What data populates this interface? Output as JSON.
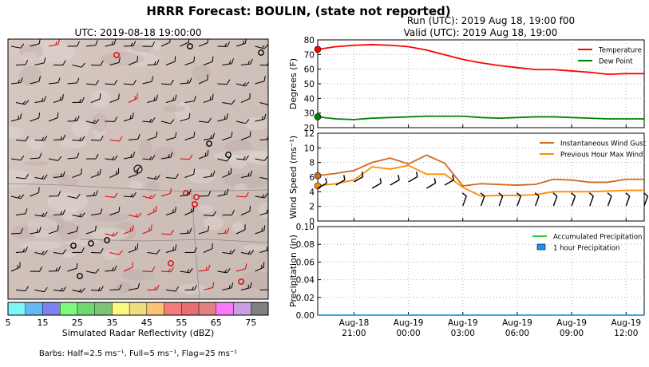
{
  "figure": {
    "suptitle": "HRRR Forecast: BOULIN, (state not reported)",
    "barbs_note": "Barbs: Half=2.5 ms⁻¹, Full=5 ms⁻¹, Flag=25 ms⁻¹"
  },
  "map_panel": {
    "title": "UTC: 2019-08-18 19:00:00",
    "colorbar_label": "Simulated Radar Reflectivity (dBZ)",
    "colorbar_ticks": [
      "5",
      "15",
      "25",
      "35",
      "45",
      "55",
      "65",
      "75"
    ],
    "colorbar_colors": [
      "#7ff5f5",
      "#65b8f5",
      "#8080f0",
      "#7dfa7d",
      "#6ed86e",
      "#7cc47c",
      "#fafa82",
      "#f0dd82",
      "#f8c476",
      "#f67a7a",
      "#e87070",
      "#e08080",
      "#f87af8",
      "#c8a0e0",
      "#808080"
    ]
  },
  "header_right": {
    "run": "Run (UTC): 2019 Aug 18, 19:00 f00",
    "valid": "Valid (UTC): 2019 Aug 18, 19:00"
  },
  "chart_data": [
    {
      "type": "line",
      "x": [
        "2019-08-18 19:00",
        "2019-08-18 20:00",
        "2019-08-18 21:00",
        "2019-08-18 22:00",
        "2019-08-18 23:00",
        "2019-08-19 00:00",
        "2019-08-19 01:00",
        "2019-08-19 02:00",
        "2019-08-19 03:00",
        "2019-08-19 04:00",
        "2019-08-19 05:00",
        "2019-08-19 06:00",
        "2019-08-19 07:00",
        "2019-08-19 08:00",
        "2019-08-19 09:00",
        "2019-08-19 10:00",
        "2019-08-19 11:00",
        "2019-08-19 12:00",
        "2019-08-19 13:00"
      ],
      "ylabel": "Degrees (F)",
      "ylim": [
        20,
        85
      ],
      "yticks": [
        "20",
        "30",
        "40",
        "50",
        "60",
        "70",
        "80"
      ],
      "grid": true,
      "legend": "top-right",
      "series": [
        {
          "name": "Temperature",
          "color": "#ff0000",
          "values": [
            78,
            80,
            81,
            81.5,
            81,
            80,
            77.5,
            74,
            70.5,
            68,
            66,
            64.5,
            63,
            63,
            62,
            61,
            59.5,
            60,
            60
          ]
        },
        {
          "name": "Dew Point",
          "color": "#008000",
          "values": [
            28,
            26.5,
            26,
            27,
            27.5,
            28,
            28.5,
            28.5,
            28.5,
            27.5,
            27,
            27.5,
            28,
            28,
            27.5,
            27,
            26.5,
            26.5,
            26.5
          ]
        }
      ]
    },
    {
      "type": "line",
      "ylabel": "Wind Speed (ms⁻¹)",
      "ylim": [
        0,
        12
      ],
      "yticks": [
        "0",
        "2",
        "4",
        "6",
        "8",
        "10",
        "12"
      ],
      "grid": true,
      "legend": "top-right",
      "series": [
        {
          "name": "Instantaneous Wind Gust",
          "color": "#d2691e",
          "values": [
            6.2,
            6.5,
            6.9,
            8.0,
            8.6,
            7.8,
            9.0,
            7.9,
            4.8,
            5.1,
            5.0,
            4.9,
            5.0,
            5.7,
            5.6,
            5.3,
            5.3,
            5.7,
            5.7
          ]
        },
        {
          "name": "Previous Hour Max Wind",
          "color": "#ff8c00",
          "values": [
            4.8,
            5.1,
            5.6,
            7.4,
            7.1,
            7.6,
            6.4,
            6.4,
            4.6,
            3.4,
            3.5,
            3.5,
            3.6,
            4.0,
            4.0,
            4.0,
            4.1,
            4.2,
            4.2
          ]
        }
      ]
    },
    {
      "type": "line",
      "ylabel": "Precipitation (in)",
      "ylim": [
        0,
        0.1
      ],
      "yticks": [
        "0.00",
        "0.02",
        "0.04",
        "0.06",
        "0.08",
        "0.10"
      ],
      "grid": true,
      "legend": "top-right",
      "series": [
        {
          "name": "Accumulated Precipitation",
          "color": "#32cd32",
          "values": [
            0,
            0,
            0,
            0,
            0,
            0,
            0,
            0,
            0,
            0,
            0,
            0,
            0,
            0,
            0,
            0,
            0,
            0,
            0
          ]
        },
        {
          "name": "1 hour Precipitation",
          "color": "#1e90ff",
          "values": [
            0,
            0,
            0,
            0,
            0,
            0,
            0,
            0,
            0,
            0,
            0,
            0,
            0,
            0,
            0,
            0,
            0,
            0,
            0
          ]
        }
      ],
      "x_tick_labels": [
        {
          "date": "Aug-18",
          "time": "21:00"
        },
        {
          "date": "Aug-19",
          "time": "00:00"
        },
        {
          "date": "Aug-19",
          "time": "03:00"
        },
        {
          "date": "Aug-19",
          "time": "06:00"
        },
        {
          "date": "Aug-19",
          "time": "09:00"
        },
        {
          "date": "Aug-19",
          "time": "12:00"
        }
      ]
    }
  ]
}
